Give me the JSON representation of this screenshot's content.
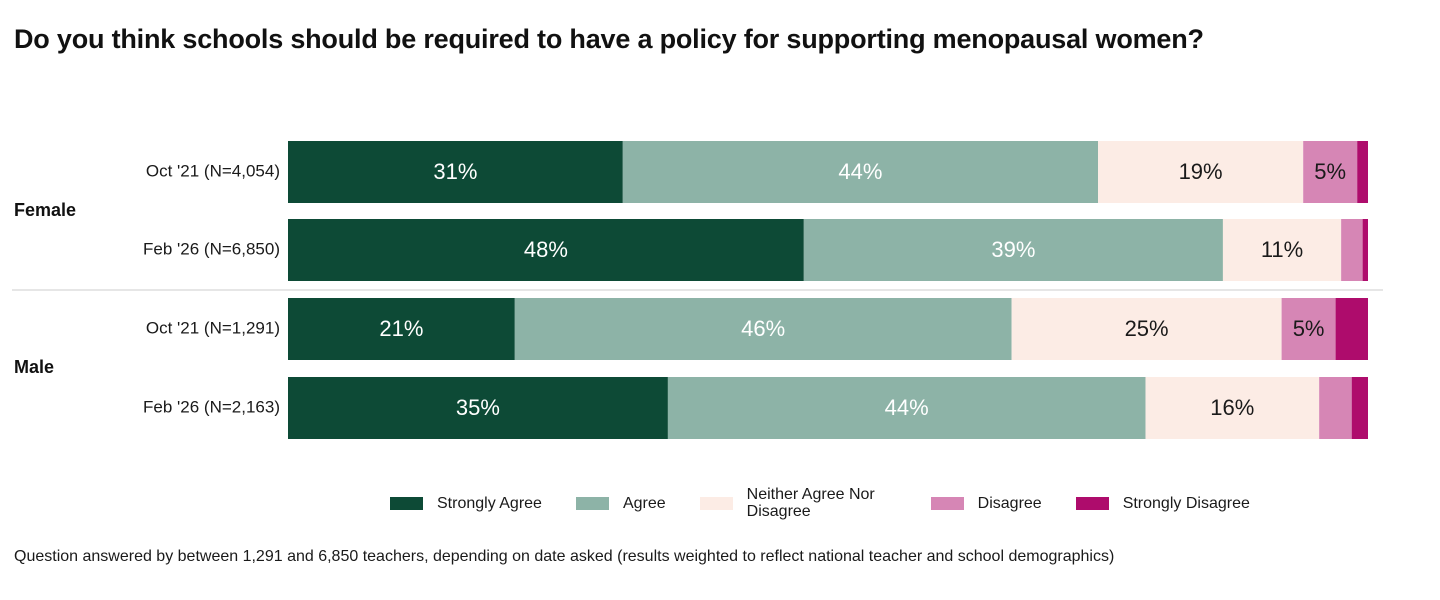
{
  "title": "Do you think schools should be required to have a policy for supporting menopausal women?",
  "footnote": "Question answered by between 1,291 and 6,850 teachers, depending on date asked (results weighted to reflect national teacher and school demographics)",
  "legend": [
    {
      "label": "Strongly Agree"
    },
    {
      "label": "Agree"
    },
    {
      "label": "Neither Agree Nor Disagree"
    },
    {
      "label": "Disagree"
    },
    {
      "label": "Strongly Disagree"
    }
  ],
  "chart_data": {
    "type": "bar",
    "orientation": "horizontal",
    "stacked": true,
    "title": "Do you think schools should be required to have a policy for supporting menopausal women?",
    "xlim": [
      0,
      100
    ],
    "colors": {
      "Strongly Agree": "#0d4a36",
      "Agree": "#8db3a7",
      "Neither Agree Nor Disagree": "#fcece5",
      "Disagree": "#d686b5",
      "Strongly Disagree": "#ae0c6c"
    },
    "series_names": [
      "Strongly Agree",
      "Agree",
      "Neither Agree Nor Disagree",
      "Disagree",
      "Strongly Disagree"
    ],
    "groups": [
      {
        "name": "Female",
        "bars": [
          {
            "label": "Oct '21 (N=4,054)",
            "values": [
              31,
              44,
              19,
              5,
              1
            ],
            "labels": [
              "31%",
              "44%",
              "19%",
              "5%",
              ""
            ]
          },
          {
            "label": "Feb '26 (N=6,850)",
            "values": [
              48,
              39,
              11,
              2,
              0.5
            ],
            "labels": [
              "48%",
              "39%",
              "11%",
              "",
              ""
            ]
          }
        ]
      },
      {
        "name": "Male",
        "bars": [
          {
            "label": "Oct '21 (N=1,291)",
            "values": [
              21,
              46,
              25,
              5,
              3
            ],
            "labels": [
              "21%",
              "46%",
              "25%",
              "5%",
              ""
            ]
          },
          {
            "label": "Feb '26 (N=2,163)",
            "values": [
              35,
              44,
              16,
              3,
              1.5
            ],
            "labels": [
              "35%",
              "44%",
              "16%",
              "",
              ""
            ]
          }
        ]
      }
    ]
  }
}
